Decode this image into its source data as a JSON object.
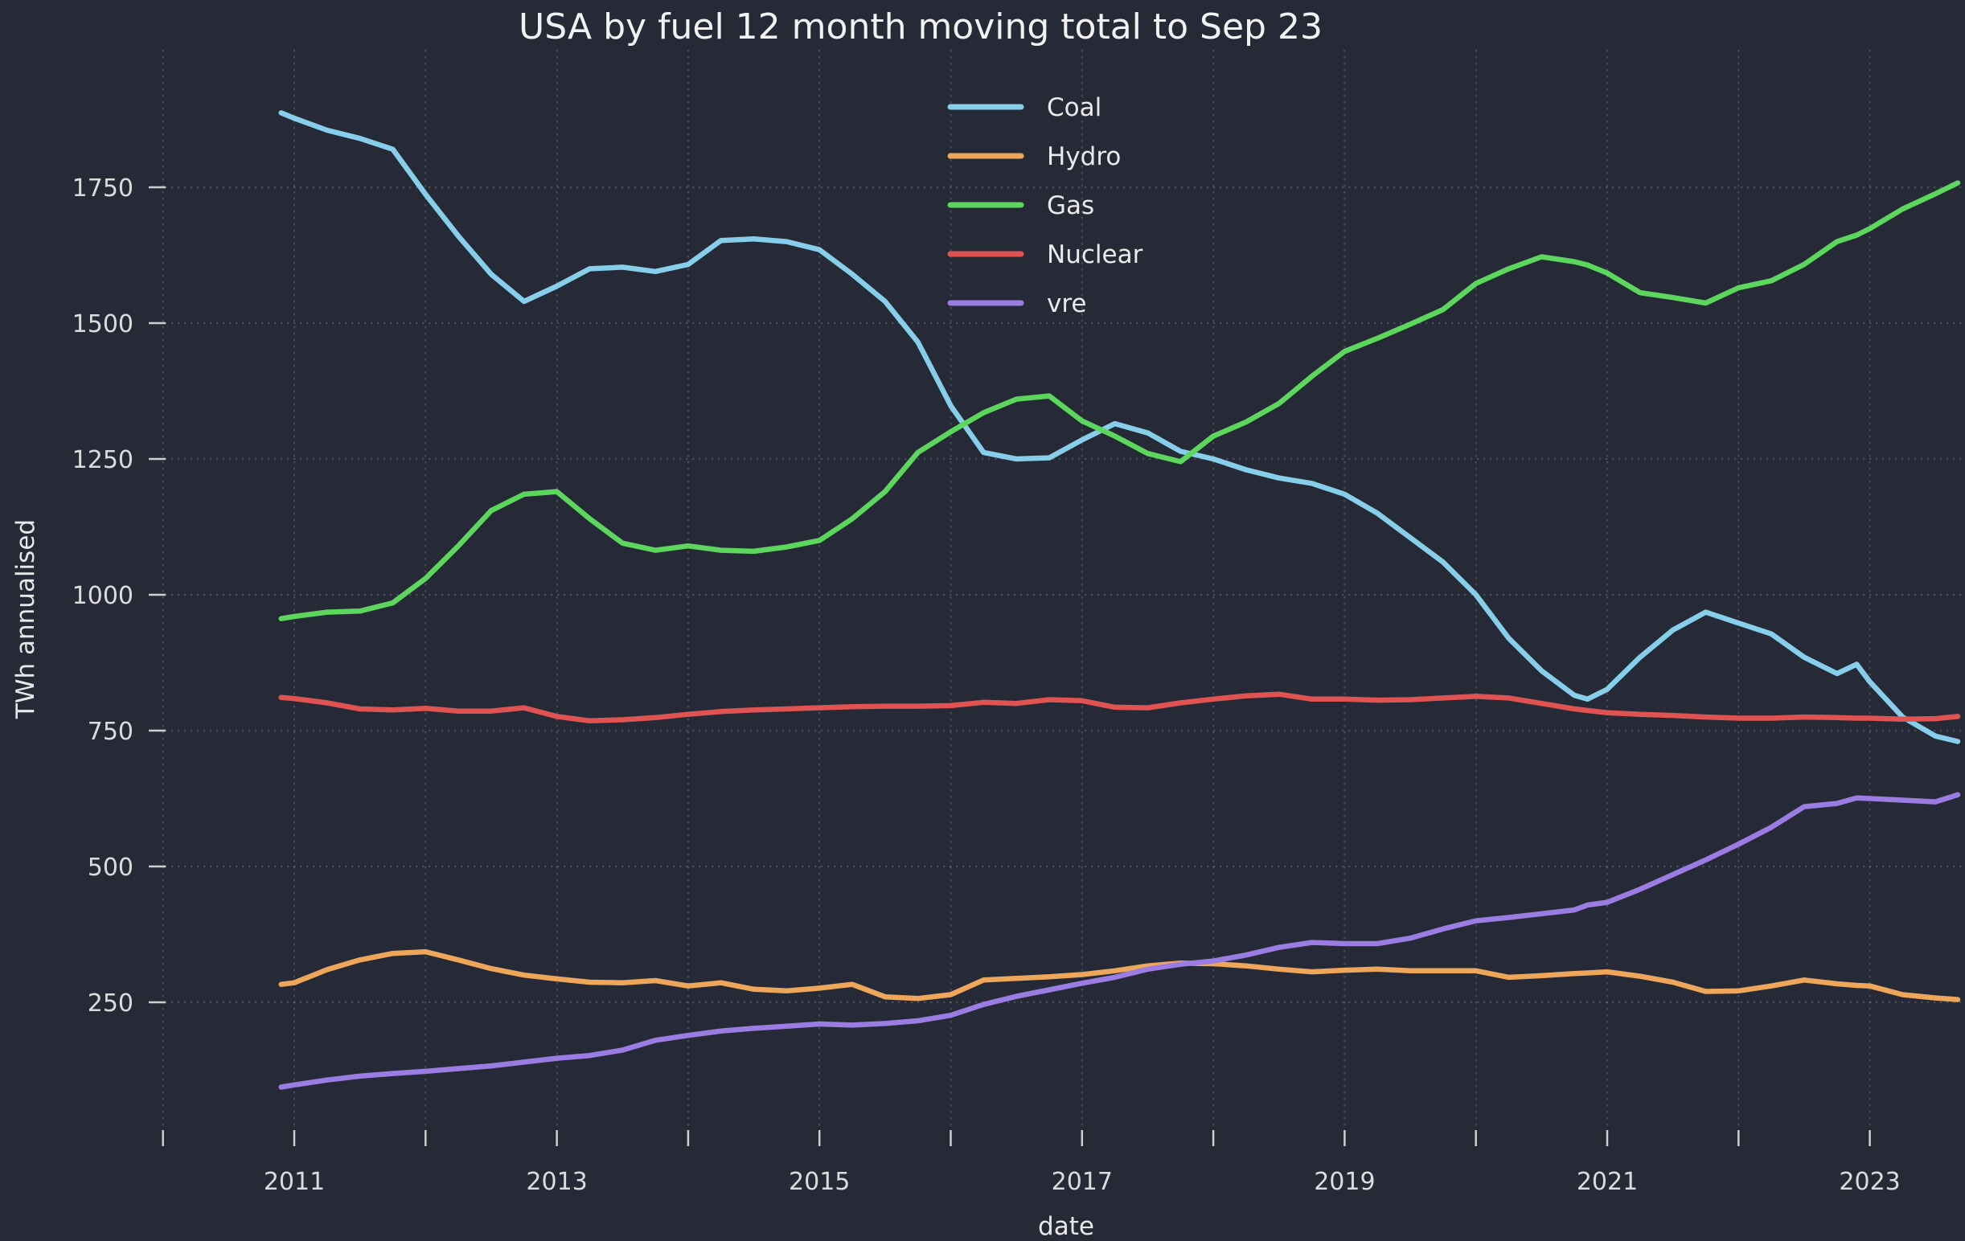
{
  "title": "USA by fuel 12 month moving total to Sep 23",
  "axes": {
    "x_label": "date",
    "y_label": "TWh annualised",
    "x_tick_labels": [
      2011,
      2013,
      2015,
      2017,
      2019,
      2021,
      2023
    ],
    "x_minor_ticks": [
      2010,
      2011,
      2012,
      2013,
      2014,
      2015,
      2016,
      2017,
      2018,
      2019,
      2020,
      2021,
      2022,
      2023
    ],
    "y_tick_labels": [
      250,
      500,
      750,
      1000,
      1250,
      1500,
      1750
    ]
  },
  "legend": {
    "entries": [
      "Coal",
      "Hydro",
      "Gas",
      "Nuclear",
      "vre"
    ],
    "position": "upper center"
  },
  "colors": {
    "background": "#252A36",
    "grid": "rgba(205,195,200,0.22)",
    "tick_text": "#DCDCDC",
    "coal": "#87CEEB",
    "hydro": "#EDA65A",
    "gas": "#5CD65C",
    "nuclear": "#E05353",
    "vre": "#9B7CE3"
  },
  "chart_data": {
    "type": "line",
    "x_unit": "decimal_year_monthly_moving_total",
    "x": [
      2010.9,
      2011.0,
      2011.25,
      2011.5,
      2011.75,
      2012.0,
      2012.25,
      2012.5,
      2012.75,
      2013.0,
      2013.25,
      2013.5,
      2013.75,
      2014.0,
      2014.25,
      2014.5,
      2014.75,
      2015.0,
      2015.25,
      2015.5,
      2015.75,
      2016.0,
      2016.25,
      2016.5,
      2016.75,
      2017.0,
      2017.25,
      2017.5,
      2017.75,
      2018.0,
      2018.25,
      2018.5,
      2018.75,
      2019.0,
      2019.25,
      2019.5,
      2019.75,
      2020.0,
      2020.25,
      2020.5,
      2020.75,
      2020.85,
      2021.0,
      2021.25,
      2021.5,
      2021.75,
      2022.0,
      2022.25,
      2022.5,
      2022.75,
      2022.9,
      2023.0,
      2023.25,
      2023.5,
      2023.67
    ],
    "series": [
      {
        "name": "Coal",
        "color_key": "coal",
        "values": [
          1887,
          1877,
          1855,
          1840,
          1820,
          1737,
          1660,
          1590,
          1540,
          1568,
          1600,
          1603,
          1595,
          1608,
          1652,
          1655,
          1650,
          1635,
          1590,
          1540,
          1465,
          1348,
          1262,
          1250,
          1252,
          1285,
          1315,
          1298,
          1264,
          1250,
          1230,
          1215,
          1205,
          1185,
          1150,
          1105,
          1060,
          1000,
          920,
          860,
          815,
          808,
          826,
          885,
          935,
          968,
          948,
          928,
          885,
          855,
          872,
          840,
          775,
          740,
          730
        ]
      },
      {
        "name": "Hydro",
        "color_key": "hydro",
        "values": [
          283,
          286,
          310,
          328,
          340,
          343,
          328,
          312,
          300,
          293,
          287,
          286,
          290,
          280,
          286,
          274,
          271,
          276,
          283,
          260,
          257,
          264,
          291,
          294,
          297,
          301,
          308,
          317,
          322,
          321,
          317,
          311,
          306,
          309,
          311,
          308,
          308,
          308,
          296,
          299,
          303,
          304,
          306,
          298,
          287,
          270,
          271,
          280,
          291,
          284,
          281,
          280,
          264,
          258,
          255
        ]
      },
      {
        "name": "Gas",
        "color_key": "gas",
        "values": [
          956,
          960,
          968,
          970,
          985,
          1030,
          1090,
          1155,
          1185,
          1190,
          1140,
          1095,
          1082,
          1090,
          1082,
          1080,
          1088,
          1100,
          1140,
          1190,
          1262,
          1300,
          1335,
          1360,
          1366,
          1320,
          1292,
          1260,
          1245,
          1292,
          1318,
          1352,
          1402,
          1448,
          1472,
          1498,
          1525,
          1573,
          1600,
          1622,
          1613,
          1607,
          1592,
          1556,
          1547,
          1537,
          1565,
          1578,
          1608,
          1650,
          1662,
          1674,
          1710,
          1738,
          1758
        ]
      },
      {
        "name": "Nuclear",
        "color_key": "nuclear",
        "values": [
          811,
          809,
          801,
          790,
          788,
          791,
          786,
          786,
          792,
          776,
          768,
          770,
          774,
          780,
          785,
          788,
          790,
          792,
          794,
          795,
          795,
          796,
          802,
          800,
          807,
          805,
          793,
          792,
          801,
          808,
          814,
          817,
          808,
          808,
          806,
          807,
          810,
          813,
          810,
          800,
          790,
          787,
          783,
          780,
          778,
          775,
          773,
          773,
          775,
          774,
          773,
          773,
          771,
          772,
          776
        ]
      },
      {
        "name": "vre",
        "color_key": "vre",
        "values": [
          94,
          98,
          107,
          114,
          119,
          123,
          128,
          133,
          140,
          147,
          152,
          162,
          180,
          189,
          197,
          202,
          206,
          210,
          208,
          211,
          216,
          226,
          246,
          261,
          273,
          285,
          296,
          311,
          320,
          326,
          337,
          351,
          360,
          358,
          358,
          368,
          385,
          400,
          406,
          413,
          420,
          429,
          434,
          458,
          485,
          512,
          541,
          572,
          610,
          616,
          626,
          625,
          622,
          619,
          632
        ]
      }
    ],
    "xlim": [
      2010.6,
      2023.95
    ],
    "ylim": [
      0,
      2000
    ],
    "grid": "dotted, vertical every year, horizontal every 250 TWh",
    "legend_position": "upper center",
    "title": "USA by fuel 12 month moving total to Sep 23",
    "xlabel": "date",
    "ylabel": "TWh annualised"
  }
}
